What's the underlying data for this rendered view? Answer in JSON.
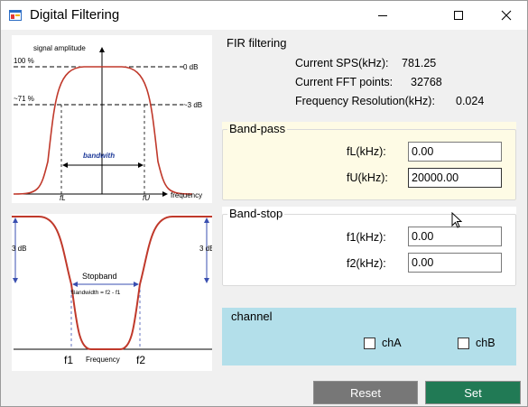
{
  "window": {
    "title": "Digital Filtering",
    "colors": {
      "bandpass_bg": "#fefbe5",
      "channel_bg": "#b3dfea",
      "reset_bg": "#777777",
      "set_bg": "#217a55",
      "curve": "#c0392b"
    }
  },
  "bandpass_diagram": {
    "ylabel": "signal amplitude",
    "pct100": "100 %",
    "pct71": "~71 %",
    "db0": "0 dB",
    "db3": "~3 dB",
    "bandwidth": "bandwith",
    "fl": "fL",
    "fu": "fU",
    "xlabel": "frequency"
  },
  "bandstop_diagram": {
    "left_db": "3 dB",
    "right_db": "3 dE",
    "stopband": "Stopband",
    "bandwidth_eq": "Bandwidth = f2 - f1",
    "f1": "f1",
    "f2": "f2",
    "xlabel": "Frequency"
  },
  "fir": {
    "title": "FIR filtering",
    "sps_label": "Current SPS(kHz):",
    "sps_value": "781.25",
    "fft_label": "Current FFT points:",
    "fft_value": "32768",
    "res_label": "Frequency Resolution(kHz):",
    "res_value": "0.024"
  },
  "bandpass": {
    "title": "Band-pass",
    "fl_label": "fL(kHz):",
    "fl_value": "0.00",
    "fu_label": "fU(kHz):",
    "fu_value": "20000.00"
  },
  "bandstop": {
    "title": "Band-stop",
    "f1_label": "f1(kHz):",
    "f1_value": "0.00",
    "f2_label": "f2(kHz):",
    "f2_value": "0.00"
  },
  "channel": {
    "title": "channel",
    "cha_label": "chA",
    "chb_label": "chB"
  },
  "buttons": {
    "reset": "Reset",
    "set": "Set"
  }
}
